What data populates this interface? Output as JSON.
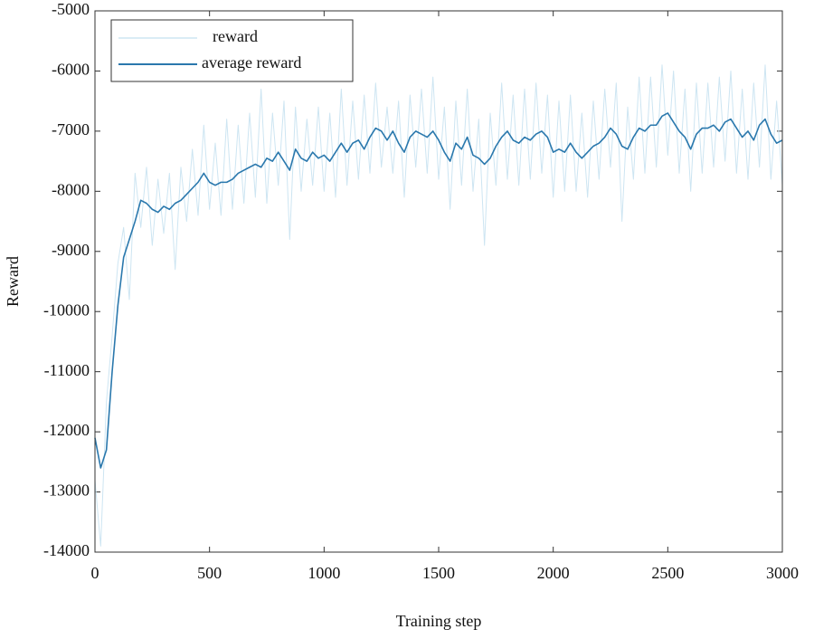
{
  "chart_data": {
    "type": "line",
    "xlabel": "Training step",
    "ylabel": "Reward",
    "x": [
      0,
      25,
      50,
      75,
      100,
      125,
      150,
      175,
      200,
      225,
      250,
      275,
      300,
      325,
      350,
      375,
      400,
      425,
      450,
      475,
      500,
      525,
      550,
      575,
      600,
      625,
      650,
      675,
      700,
      725,
      750,
      775,
      800,
      825,
      850,
      875,
      900,
      925,
      950,
      975,
      1000,
      1025,
      1050,
      1075,
      1100,
      1125,
      1150,
      1175,
      1200,
      1225,
      1250,
      1275,
      1300,
      1325,
      1350,
      1375,
      1400,
      1425,
      1450,
      1475,
      1500,
      1525,
      1550,
      1575,
      1600,
      1625,
      1650,
      1675,
      1700,
      1725,
      1750,
      1775,
      1800,
      1825,
      1850,
      1875,
      1900,
      1925,
      1950,
      1975,
      2000,
      2025,
      2050,
      2075,
      2100,
      2125,
      2150,
      2175,
      2200,
      2225,
      2250,
      2275,
      2300,
      2325,
      2350,
      2375,
      2400,
      2425,
      2450,
      2475,
      2500,
      2525,
      2550,
      2575,
      2600,
      2625,
      2650,
      2675,
      2700,
      2725,
      2750,
      2775,
      2800,
      2825,
      2850,
      2875,
      2900,
      2925,
      2950,
      2975,
      3000
    ],
    "series": [
      {
        "name": "reward",
        "color": "#cde5f2",
        "width": 1,
        "values": [
          -12800,
          -13900,
          -11500,
          -10400,
          -9200,
          -8600,
          -9800,
          -7700,
          -8600,
          -7600,
          -8900,
          -7800,
          -8700,
          -7700,
          -9300,
          -7600,
          -8500,
          -7300,
          -8400,
          -6900,
          -8300,
          -7200,
          -8400,
          -6800,
          -8300,
          -6900,
          -8200,
          -6700,
          -8100,
          -6300,
          -8200,
          -6700,
          -7900,
          -6500,
          -8800,
          -6600,
          -8000,
          -6800,
          -7900,
          -6600,
          -8000,
          -6700,
          -8100,
          -6300,
          -7900,
          -6500,
          -7800,
          -6400,
          -7700,
          -6200,
          -7600,
          -6600,
          -7700,
          -6500,
          -8100,
          -6400,
          -7600,
          -6300,
          -7700,
          -6100,
          -7800,
          -6600,
          -8300,
          -6500,
          -7900,
          -6300,
          -8000,
          -6800,
          -8900,
          -6700,
          -7900,
          -6200,
          -7800,
          -6400,
          -7900,
          -6300,
          -7800,
          -6200,
          -7700,
          -6400,
          -8100,
          -6500,
          -8000,
          -6400,
          -8000,
          -6700,
          -8100,
          -6500,
          -7800,
          -6300,
          -7600,
          -6200,
          -8500,
          -6600,
          -7800,
          -6100,
          -7700,
          -6100,
          -7600,
          -5900,
          -7400,
          -6000,
          -7700,
          -6300,
          -8000,
          -6200,
          -7700,
          -6200,
          -7600,
          -6100,
          -7500,
          -6000,
          -7700,
          -6300,
          -7800,
          -6200,
          -7600,
          -5900,
          -7800,
          -6500,
          -7900
        ]
      },
      {
        "name": "average reward",
        "color": "#2a78ad",
        "width": 1.6,
        "values": [
          -12100,
          -12600,
          -12300,
          -11000,
          -9900,
          -9100,
          -8800,
          -8500,
          -8150,
          -8200,
          -8300,
          -8350,
          -8250,
          -8300,
          -8200,
          -8150,
          -8050,
          -7950,
          -7850,
          -7700,
          -7850,
          -7900,
          -7850,
          -7850,
          -7800,
          -7700,
          -7650,
          -7600,
          -7550,
          -7600,
          -7450,
          -7500,
          -7350,
          -7500,
          -7650,
          -7300,
          -7450,
          -7500,
          -7350,
          -7450,
          -7400,
          -7500,
          -7350,
          -7200,
          -7350,
          -7200,
          -7150,
          -7300,
          -7100,
          -6950,
          -7000,
          -7150,
          -7000,
          -7200,
          -7350,
          -7100,
          -7000,
          -7050,
          -7100,
          -7000,
          -7150,
          -7350,
          -7500,
          -7200,
          -7300,
          -7100,
          -7400,
          -7450,
          -7550,
          -7450,
          -7250,
          -7100,
          -7000,
          -7150,
          -7200,
          -7100,
          -7150,
          -7050,
          -7000,
          -7100,
          -7350,
          -7300,
          -7350,
          -7200,
          -7350,
          -7450,
          -7350,
          -7250,
          -7200,
          -7100,
          -6950,
          -7050,
          -7250,
          -7300,
          -7100,
          -6950,
          -7000,
          -6900,
          -6900,
          -6750,
          -6700,
          -6850,
          -7000,
          -7100,
          -7300,
          -7050,
          -6950,
          -6950,
          -6900,
          -7000,
          -6850,
          -6800,
          -6950,
          -7100,
          -7000,
          -7150,
          -6900,
          -6800,
          -7050,
          -7200,
          -7150
        ]
      }
    ],
    "xlim": [
      0,
      3000
    ],
    "xticks": [
      0,
      500,
      1000,
      1500,
      2000,
      2500,
      3000
    ],
    "ylim": [
      -14000,
      -5000
    ],
    "yticks": [
      -14000,
      -13000,
      -12000,
      -11000,
      -10000,
      -9000,
      -8000,
      -7000,
      -6000,
      -5000
    ],
    "legend": "upper left"
  }
}
